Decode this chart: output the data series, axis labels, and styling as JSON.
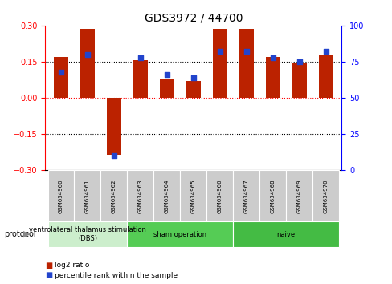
{
  "title": "GDS3972 / 44700",
  "samples": [
    "GSM634960",
    "GSM634961",
    "GSM634962",
    "GSM634963",
    "GSM634964",
    "GSM634965",
    "GSM634966",
    "GSM634967",
    "GSM634968",
    "GSM634969",
    "GSM634970"
  ],
  "log2_ratio": [
    0.17,
    0.285,
    -0.235,
    0.155,
    0.08,
    0.07,
    0.285,
    0.285,
    0.17,
    0.145,
    0.18
  ],
  "pct_rank": [
    68,
    80,
    10,
    78,
    66,
    64,
    82,
    82,
    78,
    75,
    82
  ],
  "bar_color": "#bb2200",
  "pct_color": "#2244cc",
  "ylim": [
    -0.3,
    0.3
  ],
  "y2lim": [
    0,
    100
  ],
  "yticks": [
    -0.3,
    -0.15,
    0,
    0.15,
    0.3
  ],
  "y2ticks": [
    0,
    25,
    50,
    75,
    100
  ],
  "dotted_lines_black": [
    -0.15,
    0.15
  ],
  "dotted_line_red": 0,
  "groups": [
    {
      "label": "ventrolateral thalamus stimulation\n(DBS)",
      "start": 0,
      "end": 3,
      "color": "#cceecc"
    },
    {
      "label": "sham operation",
      "start": 3,
      "end": 7,
      "color": "#55cc55"
    },
    {
      "label": "naive",
      "start": 7,
      "end": 11,
      "color": "#44bb44"
    }
  ],
  "protocol_label": "protocol",
  "legend1": "log2 ratio",
  "legend2": "percentile rank within the sample",
  "bar_width": 0.55,
  "figsize": [
    4.89,
    3.54
  ],
  "dpi": 100,
  "label_box_color": "#cccccc",
  "spine_color_left": "red",
  "spine_color_right": "blue"
}
